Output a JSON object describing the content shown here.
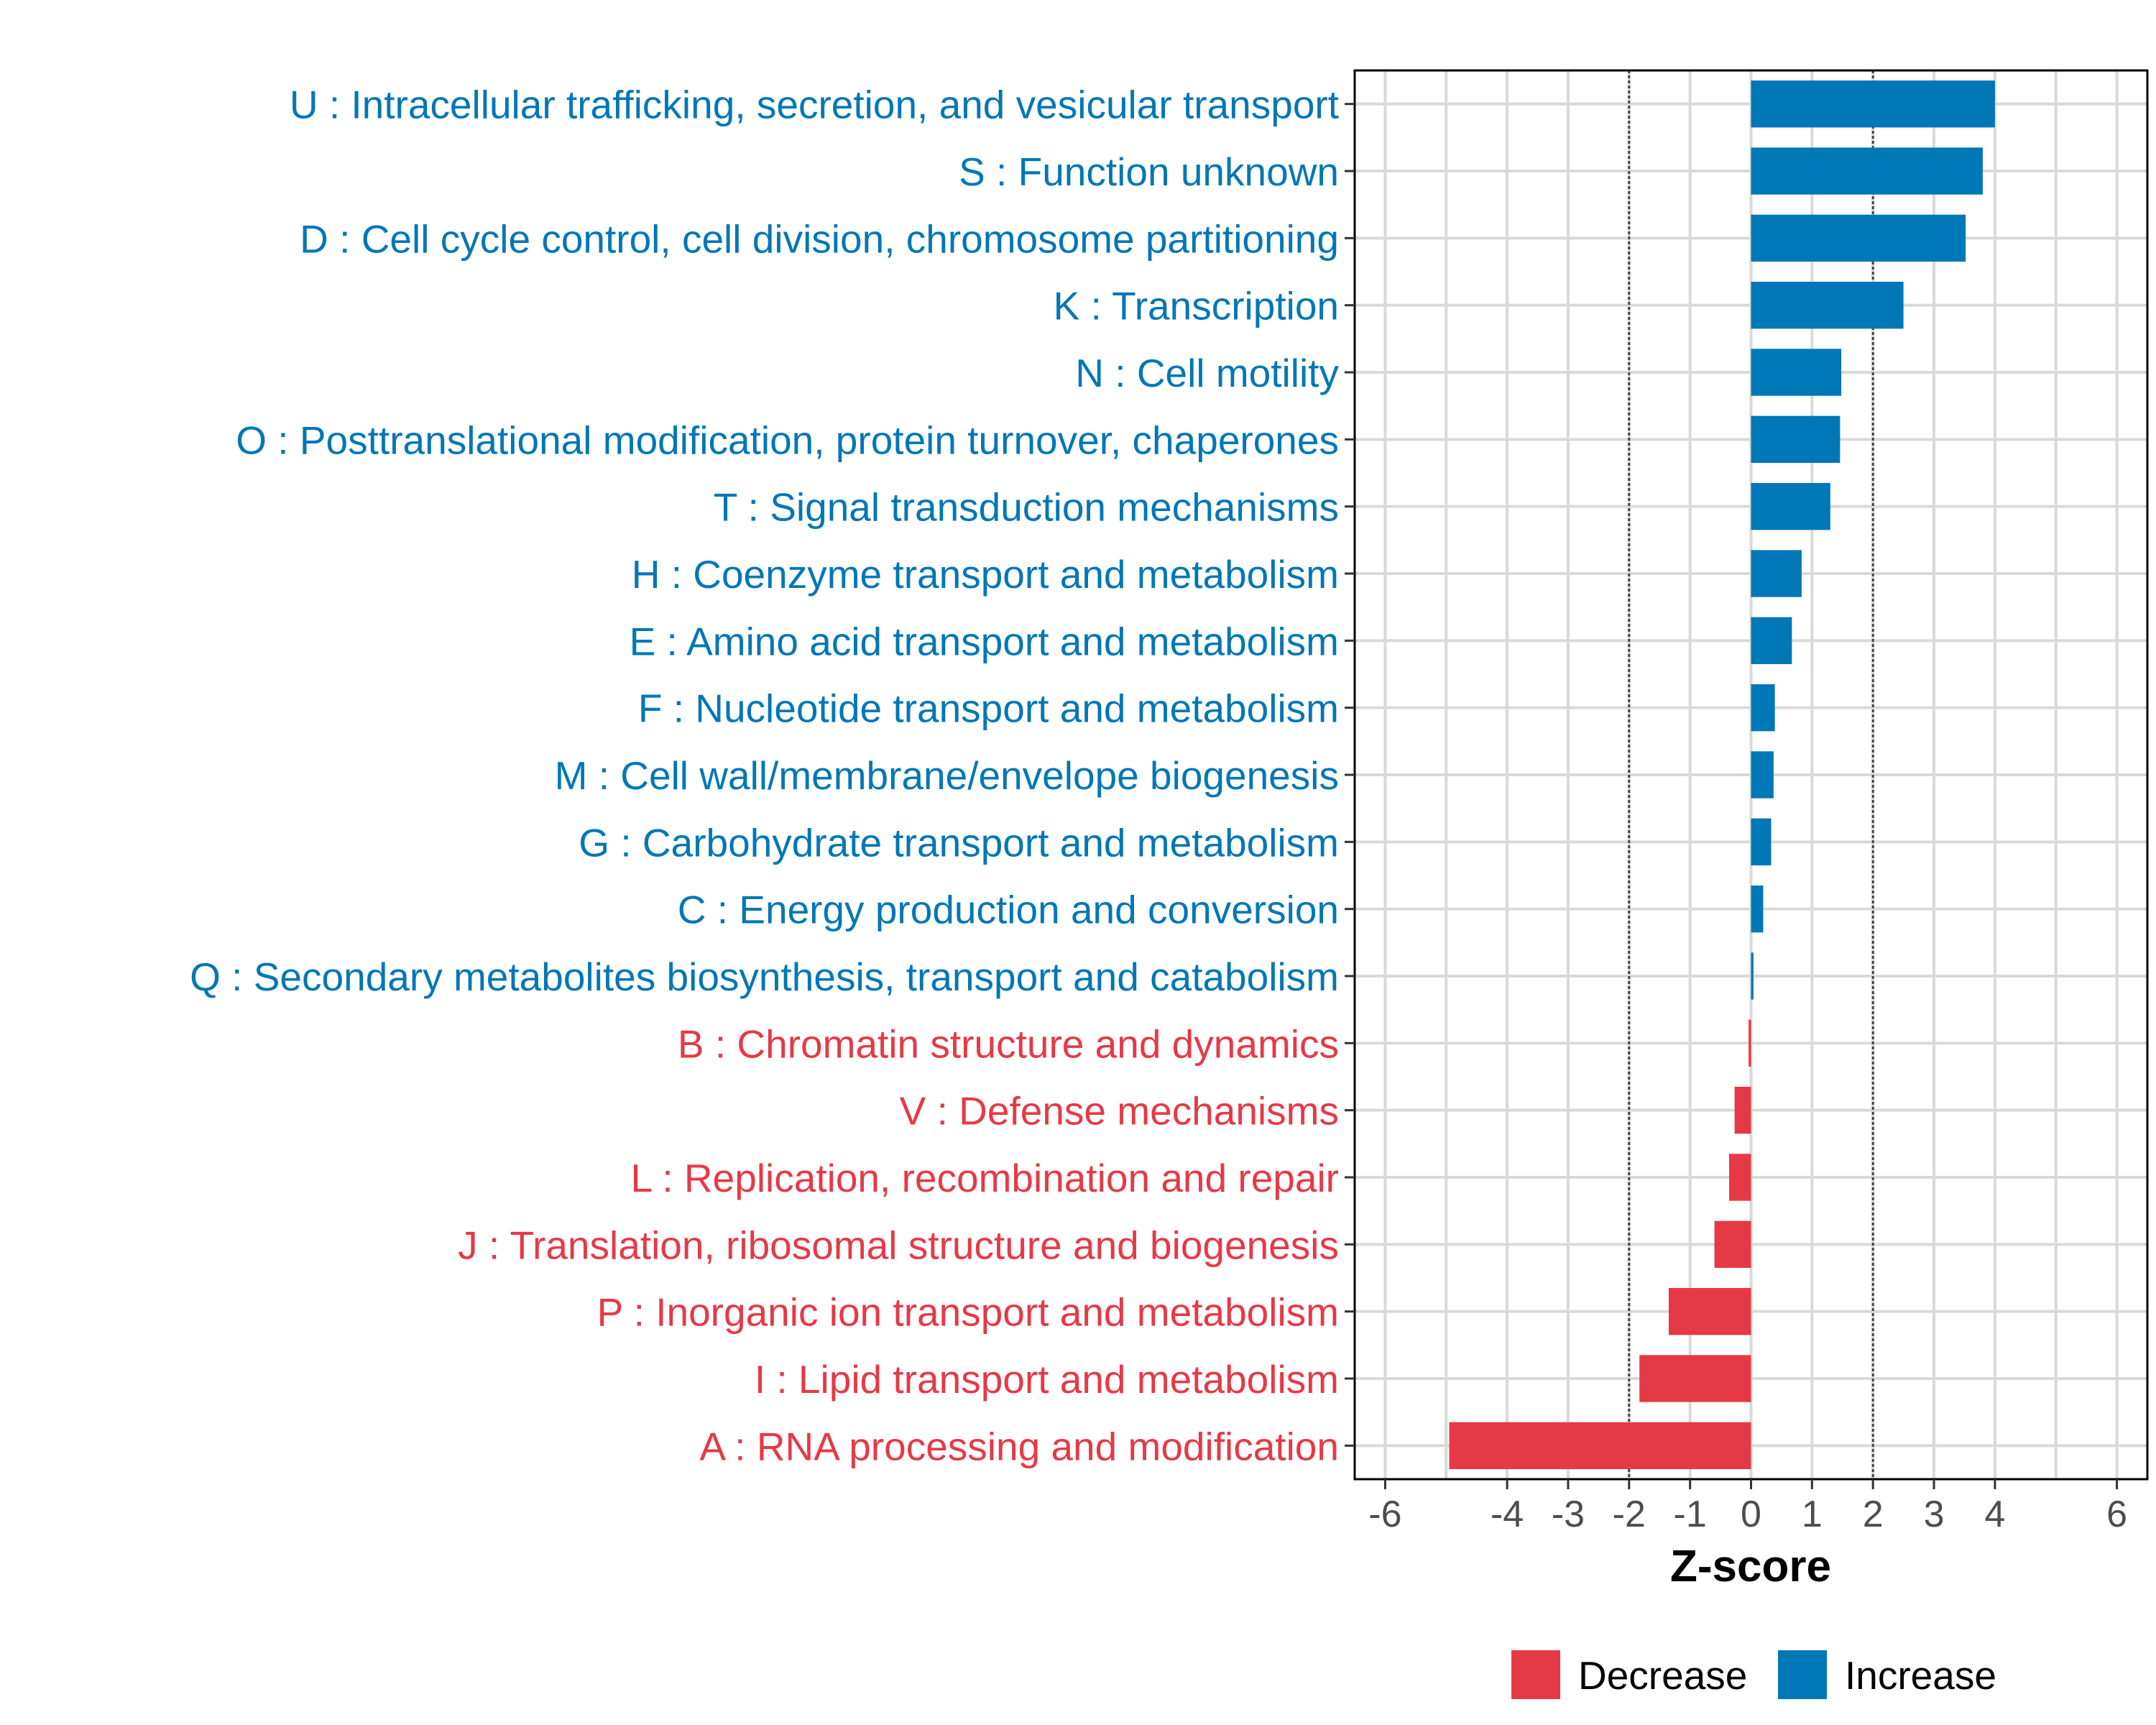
{
  "chart_data": {
    "type": "bar",
    "orientation": "horizontal",
    "title": "",
    "xlabel": "Z-score",
    "ylabel": "",
    "xlim": [
      -6.5,
      6.5
    ],
    "x_ticks": [
      -6,
      -4,
      -3,
      -2,
      -1,
      0,
      1,
      2,
      3,
      4,
      6
    ],
    "x_tick_labels": [
      "-6",
      "-4",
      "-3",
      "-2",
      "-1",
      "0",
      "1",
      "2",
      "3",
      "4",
      "6"
    ],
    "threshold_lines": [
      -2,
      2
    ],
    "grid": true,
    "legend_position": "bottom",
    "legend": [
      {
        "label": "Decrease",
        "color": "#E63946"
      },
      {
        "label": "Increase",
        "color": "#0077B6"
      }
    ],
    "categories": [
      "U : Intracellular trafficking, secretion, and vesicular transport",
      "S : Function unknown",
      "D : Cell cycle control, cell division, chromosome partitioning",
      "K : Transcription",
      "N : Cell motility",
      "O : Posttranslational modification, protein turnover, chaperones",
      "T : Signal transduction mechanisms",
      "H : Coenzyme transport and metabolism",
      "E : Amino acid transport and metabolism",
      "F : Nucleotide transport and metabolism",
      "M : Cell wall/membrane/envelope biogenesis",
      "G : Carbohydrate transport and metabolism",
      "C : Energy production and conversion",
      "Q : Secondary metabolites biosynthesis, transport and catabolism",
      "B : Chromatin structure and dynamics",
      "V : Defense mechanisms",
      "L : Replication, recombination and repair",
      "J : Translation, ribosomal structure and biogenesis",
      "P : Inorganic ion transport and metabolism",
      "I : Lipid transport and metabolism",
      "A : RNA processing and modification"
    ],
    "values": [
      4.0,
      3.8,
      3.52,
      2.5,
      1.48,
      1.46,
      1.3,
      0.83,
      0.67,
      0.39,
      0.37,
      0.33,
      0.2,
      0.04,
      -0.04,
      -0.27,
      -0.36,
      -0.6,
      -1.35,
      -1.83,
      -4.95
    ],
    "groups": [
      "Increase",
      "Increase",
      "Increase",
      "Increase",
      "Increase",
      "Increase",
      "Increase",
      "Increase",
      "Increase",
      "Increase",
      "Increase",
      "Increase",
      "Increase",
      "Increase",
      "Decrease",
      "Decrease",
      "Decrease",
      "Decrease",
      "Decrease",
      "Decrease",
      "Decrease"
    ]
  }
}
